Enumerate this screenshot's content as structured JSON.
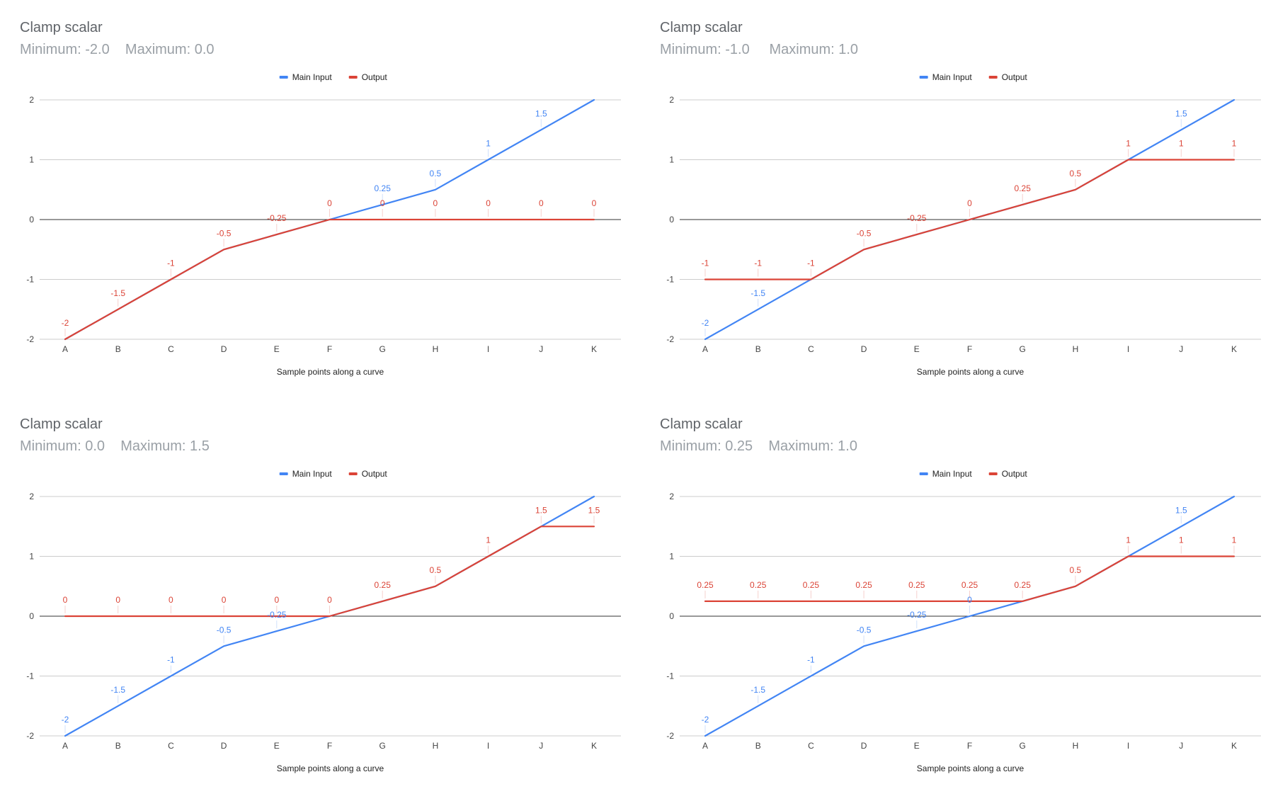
{
  "chart_data": [
    {
      "type": "line",
      "title": "Clamp scalar",
      "subtitle": "Minimum: -2.0    Maximum: 0.0",
      "xlabel": "Sample points along a curve",
      "ylabel": "",
      "categories": [
        "A",
        "B",
        "C",
        "D",
        "E",
        "F",
        "G",
        "H",
        "I",
        "J",
        "K"
      ],
      "ylim": [
        -2,
        2
      ],
      "yticks": [
        2,
        1,
        0,
        -1,
        -2
      ],
      "grid": true,
      "legend_position": "top-center",
      "series": [
        {
          "name": "Main Input",
          "color": "#4285f4",
          "values": [
            -2,
            -1.5,
            -1,
            -0.5,
            -0.25,
            0,
            0.25,
            0.5,
            1,
            1.5,
            2
          ],
          "value_labels": [
            "",
            "",
            "",
            "",
            "",
            "",
            "0.25",
            "0.5",
            "1",
            "1.5",
            ""
          ]
        },
        {
          "name": "Output",
          "color": "#db4437",
          "values": [
            -2,
            -1.5,
            -1,
            -0.5,
            -0.25,
            0,
            0,
            0,
            0,
            0,
            0
          ],
          "value_labels": [
            "-2",
            "-1.5",
            "-1",
            "-0.5",
            "-0.25",
            "0",
            "0",
            "0",
            "0",
            "0",
            "0"
          ]
        }
      ]
    },
    {
      "type": "line",
      "title": "Clamp scalar",
      "subtitle": "Minimum: -1.0     Maximum: 1.0",
      "xlabel": "Sample points along a curve",
      "ylabel": "",
      "categories": [
        "A",
        "B",
        "C",
        "D",
        "E",
        "F",
        "G",
        "H",
        "I",
        "J",
        "K"
      ],
      "ylim": [
        -2,
        2
      ],
      "yticks": [
        2,
        1,
        0,
        -1,
        -2
      ],
      "grid": true,
      "legend_position": "top-center",
      "series": [
        {
          "name": "Main Input",
          "color": "#4285f4",
          "values": [
            -2,
            -1.5,
            -1,
            -0.5,
            -0.25,
            0,
            0.25,
            0.5,
            1,
            1.5,
            2
          ],
          "value_labels": [
            "-2",
            "-1.5",
            "",
            "",
            "",
            "",
            "",
            "",
            "",
            "1.5",
            ""
          ]
        },
        {
          "name": "Output",
          "color": "#db4437",
          "values": [
            -1,
            -1,
            -1,
            -0.5,
            -0.25,
            0,
            0.25,
            0.5,
            1,
            1,
            1
          ],
          "value_labels": [
            "-1",
            "-1",
            "-1",
            "-0.5",
            "-0.25",
            "0",
            "0.25",
            "0.5",
            "1",
            "1",
            "1"
          ]
        }
      ]
    },
    {
      "type": "line",
      "title": "Clamp scalar",
      "subtitle": "Minimum: 0.0    Maximum: 1.5",
      "xlabel": "Sample points along a curve",
      "ylabel": "",
      "categories": [
        "A",
        "B",
        "C",
        "D",
        "E",
        "F",
        "G",
        "H",
        "I",
        "J",
        "K"
      ],
      "ylim": [
        -2,
        2
      ],
      "yticks": [
        2,
        1,
        0,
        -1,
        -2
      ],
      "grid": true,
      "legend_position": "top-center",
      "series": [
        {
          "name": "Main Input",
          "color": "#4285f4",
          "values": [
            -2,
            -1.5,
            -1,
            -0.5,
            -0.25,
            0,
            0.25,
            0.5,
            1,
            1.5,
            2
          ],
          "value_labels": [
            "-2",
            "-1.5",
            "-1",
            "-0.5",
            "-0.25",
            "",
            "",
            "",
            "",
            "",
            ""
          ]
        },
        {
          "name": "Output",
          "color": "#db4437",
          "values": [
            0,
            0,
            0,
            0,
            0,
            0,
            0.25,
            0.5,
            1,
            1.5,
            1.5
          ],
          "value_labels": [
            "0",
            "0",
            "0",
            "0",
            "0",
            "0",
            "0.25",
            "0.5",
            "1",
            "1.5",
            "1.5"
          ]
        }
      ]
    },
    {
      "type": "line",
      "title": "Clamp scalar",
      "subtitle": "Minimum: 0.25    Maximum: 1.0",
      "xlabel": "Sample points along a curve",
      "ylabel": "",
      "categories": [
        "A",
        "B",
        "C",
        "D",
        "E",
        "F",
        "G",
        "H",
        "I",
        "J",
        "K"
      ],
      "ylim": [
        -2,
        2
      ],
      "yticks": [
        2,
        1,
        0,
        -1,
        -2
      ],
      "grid": true,
      "legend_position": "top-center",
      "series": [
        {
          "name": "Main Input",
          "color": "#4285f4",
          "values": [
            -2,
            -1.5,
            -1,
            -0.5,
            -0.25,
            0,
            0.25,
            0.5,
            1,
            1.5,
            2
          ],
          "value_labels": [
            "-2",
            "-1.5",
            "-1",
            "-0.5",
            "-0.25",
            "0",
            "",
            "",
            "",
            "1.5",
            ""
          ]
        },
        {
          "name": "Output",
          "color": "#db4437",
          "values": [
            0.25,
            0.25,
            0.25,
            0.25,
            0.25,
            0.25,
            0.25,
            0.5,
            1,
            1,
            1
          ],
          "value_labels": [
            "0.25",
            "0.25",
            "0.25",
            "0.25",
            "0.25",
            "0.25",
            "0.25",
            "0.5",
            "1",
            "1",
            "1"
          ]
        }
      ]
    }
  ]
}
